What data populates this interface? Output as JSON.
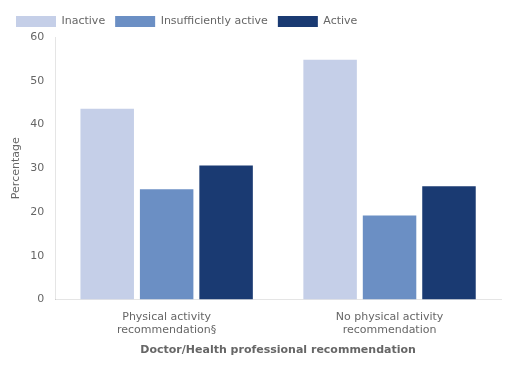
{
  "chart_data": {
    "type": "bar",
    "categories": [
      "Physical activity\nrecommendation§",
      "No physical activity\nrecommendation"
    ],
    "series": [
      {
        "name": "Inactive",
        "color": "#c5cfe8",
        "values": [
          43.6,
          54.8
        ]
      },
      {
        "name": "Insufficiently active",
        "color": "#6b8fc4",
        "values": [
          25.2,
          19.2
        ]
      },
      {
        "name": "Active",
        "color": "#1a3a72",
        "values": [
          30.6,
          25.9
        ]
      }
    ],
    "xlabel": "Doctor/Health professional recommendation",
    "ylabel": "Percentage",
    "ylim": [
      0,
      60
    ],
    "yticks": [
      0,
      10,
      20,
      30,
      40,
      50,
      60
    ],
    "legend": "upper left",
    "grid": false
  }
}
